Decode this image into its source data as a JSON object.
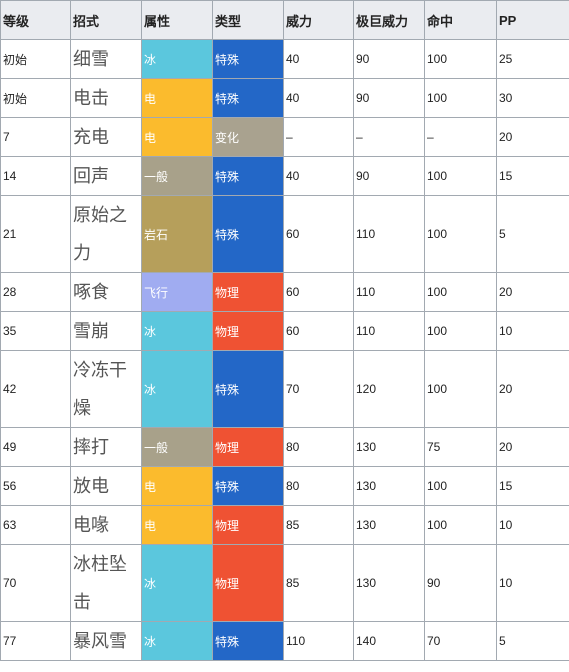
{
  "table": {
    "header": [
      "等级",
      "招式",
      "属性",
      "类型",
      "威力",
      "极巨威力",
      "命中",
      "PP"
    ],
    "rows": [
      [
        "初始",
        "细雪",
        "冰",
        "特殊",
        "40",
        "90",
        "100",
        "25"
      ],
      [
        "初始",
        "电击",
        "电",
        "特殊",
        "40",
        "90",
        "100",
        "30"
      ],
      [
        "7",
        "充电",
        "电",
        "变化",
        "–",
        "–",
        "–",
        "20"
      ],
      [
        "14",
        "回声",
        "一般",
        "特殊",
        "40",
        "90",
        "100",
        "15"
      ],
      [
        "21",
        "原始之力",
        "岩石",
        "特殊",
        "60",
        "110",
        "100",
        "5"
      ],
      [
        "28",
        "啄食",
        "飞行",
        "物理",
        "60",
        "110",
        "100",
        "20"
      ],
      [
        "35",
        "雪崩",
        "冰",
        "物理",
        "60",
        "110",
        "100",
        "10"
      ],
      [
        "42",
        "冷冻干燥",
        "冰",
        "特殊",
        "70",
        "120",
        "100",
        "20"
      ],
      [
        "49",
        "摔打",
        "一般",
        "物理",
        "80",
        "130",
        "75",
        "20"
      ],
      [
        "56",
        "放电",
        "电",
        "特殊",
        "80",
        "130",
        "100",
        "15"
      ],
      [
        "63",
        "电喙",
        "电",
        "物理",
        "85",
        "130",
        "100",
        "10"
      ],
      [
        "70",
        "冰柱坠击",
        "冰",
        "物理",
        "85",
        "130",
        "90",
        "10"
      ],
      [
        "77",
        "暴风雪",
        "冰",
        "特殊",
        "110",
        "140",
        "70",
        "5"
      ]
    ],
    "colors": {
      "冰": "#5bc7dd",
      "电": "#fbbb2d",
      "一般": "#a8a18a",
      "岩石": "#b69f5b",
      "飞行": "#a0acf1",
      "特殊": "#2367c7",
      "物理": "#ef5233",
      "变化": "#a9a28f"
    }
  }
}
